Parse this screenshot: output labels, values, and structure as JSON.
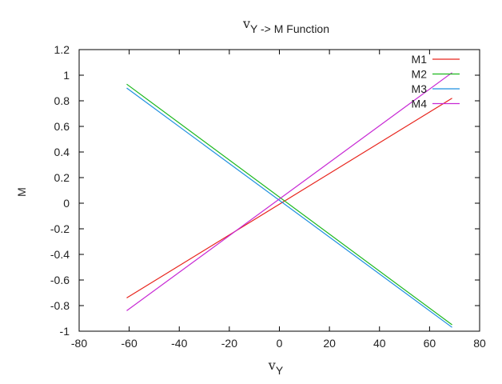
{
  "chart_data": {
    "type": "line",
    "title_symbol": "v",
    "title_sub": "Y -> M Function",
    "xlabel_symbol": "v",
    "xlabel_sub": "Y",
    "ylabel": "M",
    "xlim": [
      -80,
      80
    ],
    "ylim": [
      -1,
      1.2
    ],
    "xticks": [
      -80,
      -60,
      -40,
      -20,
      0,
      20,
      40,
      60,
      80
    ],
    "xtick_labels": [
      "-80",
      "-60",
      "-40",
      "-20",
      "0",
      "20",
      "40",
      "60",
      "80"
    ],
    "yticks": [
      -1,
      -0.8,
      -0.6,
      -0.4,
      -0.2,
      0,
      0.2,
      0.4,
      0.6,
      0.8,
      1,
      1.2
    ],
    "ytick_labels": [
      "-1",
      "-0.8",
      "-0.6",
      "-0.4",
      "-0.2",
      "0",
      "0.2",
      "0.4",
      "0.6",
      "0.8",
      "1",
      "1.2"
    ],
    "grid": false,
    "legend_position": "top-right",
    "series": [
      {
        "name": "M1",
        "color": "#e8241c",
        "x": [
          -61,
          69
        ],
        "y": [
          -0.74,
          0.82
        ]
      },
      {
        "name": "M2",
        "color": "#1db81d",
        "x": [
          -61,
          69
        ],
        "y": [
          0.93,
          -0.95
        ]
      },
      {
        "name": "M3",
        "color": "#1f8fe0",
        "x": [
          -61,
          69
        ],
        "y": [
          0.9,
          -0.97
        ]
      },
      {
        "name": "M4",
        "color": "#c728d4",
        "x": [
          -61,
          69
        ],
        "y": [
          -0.84,
          1.02
        ]
      }
    ]
  }
}
